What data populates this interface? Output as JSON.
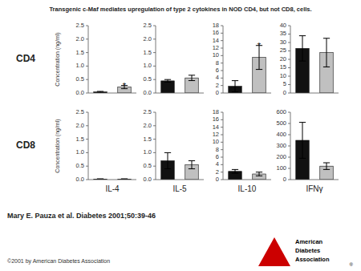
{
  "title": "Transgenic c-Maf mediates upregulation of type 2 cytokines in NOD CD4, but not CD8, cells.",
  "row_labels": [
    "CD4",
    "CD8"
  ],
  "ylabel": "Concentration (ng/ml)",
  "citation": "Mary E. Pauza et al. Diabetes 2001;50:39-46",
  "copyright": "©2001 by American Diabetes Association",
  "logo": [
    "American",
    "Diabetes",
    "Association",
    "®"
  ],
  "chart_data": [
    {
      "type": "bar",
      "categories": [
        null,
        null
      ],
      "values": [
        0.04,
        0.22
      ],
      "errors": [
        0.02,
        0.06
      ],
      "colors": [
        "#111111",
        "#c0c0c0"
      ],
      "annotations": [
        null,
        "*"
      ],
      "ylim": [
        0,
        2.5
      ],
      "yticks": [
        {
          "value": 0,
          "label": "0.0"
        },
        0.5,
        {
          "value": 1.0,
          "label": "1.0"
        },
        1.5,
        {
          "value": 2.0,
          "label": "2.0"
        },
        2.5
      ]
    },
    {
      "type": "bar",
      "categories": [
        null,
        null
      ],
      "values": [
        0.45,
        0.56
      ],
      "errors": [
        0.05,
        0.1
      ],
      "colors": [
        "#111111",
        "#c0c0c0"
      ],
      "ylim": [
        0,
        2.5
      ],
      "yticks": [
        {
          "value": 0,
          "label": "0.0"
        },
        0.5,
        {
          "value": 1.0,
          "label": "1.0"
        },
        1.5,
        {
          "value": 2.0,
          "label": "2.0"
        },
        2.5
      ]
    },
    {
      "type": "bar",
      "categories": [
        null,
        null
      ],
      "values": [
        1.8,
        9.5
      ],
      "errors": [
        1.5,
        3.2
      ],
      "colors": [
        "#111111",
        "#c0c0c0"
      ],
      "annotations": [
        null,
        "*"
      ],
      "ylim": [
        0,
        18
      ],
      "yticks": [
        0,
        2,
        4,
        6,
        8,
        10,
        12,
        14,
        16,
        18
      ]
    },
    {
      "type": "bar",
      "categories": [
        null,
        null
      ],
      "values": [
        26.5,
        24.0
      ],
      "errors": [
        7.5,
        8.5
      ],
      "colors": [
        "#111111",
        "#c0c0c0"
      ],
      "ylim": [
        0,
        40
      ],
      "yticks": [
        0,
        5,
        10,
        15,
        20,
        25,
        30,
        35,
        40
      ]
    },
    {
      "type": "bar",
      "categories": [
        null,
        null
      ],
      "values": [
        0.02,
        0.02
      ],
      "errors": [
        0.01,
        0.01
      ],
      "colors": [
        "#111111",
        "#c0c0c0"
      ],
      "xlabel": "IL-4",
      "ylim": [
        0,
        2.5
      ],
      "yticks": [
        {
          "value": 0,
          "label": "0.0"
        },
        0.5,
        {
          "value": 1.0,
          "label": "1.0"
        },
        1.5,
        {
          "value": 2.0,
          "label": "2.0"
        },
        2.5
      ]
    },
    {
      "type": "bar",
      "categories": [
        null,
        null
      ],
      "values": [
        0.7,
        0.55
      ],
      "errors": [
        0.3,
        0.15
      ],
      "colors": [
        "#111111",
        "#c0c0c0"
      ],
      "xlabel": "IL-5",
      "ylim": [
        0,
        2.5
      ],
      "yticks": [
        {
          "value": 0,
          "label": "0.0"
        },
        0.5,
        {
          "value": 1.0,
          "label": "1.0"
        },
        1.5,
        {
          "value": 2.0,
          "label": "2.0"
        },
        2.5
      ]
    },
    {
      "type": "bar",
      "categories": [
        null,
        null
      ],
      "values": [
        2.2,
        1.5
      ],
      "errors": [
        0.5,
        0.5
      ],
      "colors": [
        "#111111",
        "#c0c0c0"
      ],
      "xlabel": "IL-10",
      "ylim": [
        0,
        18
      ],
      "yticks": [
        0,
        2,
        4,
        6,
        8,
        10,
        12,
        14,
        16,
        18
      ]
    },
    {
      "type": "bar",
      "categories": [
        null,
        null
      ],
      "values": [
        350.0,
        120.0
      ],
      "errors": [
        160.0,
        30.0
      ],
      "colors": [
        "#111111",
        "#c0c0c0"
      ],
      "xlabel": "IFNγ",
      "ylim": [
        0,
        600
      ],
      "yticks": [
        0,
        100,
        200,
        300,
        400,
        500,
        600
      ]
    }
  ]
}
